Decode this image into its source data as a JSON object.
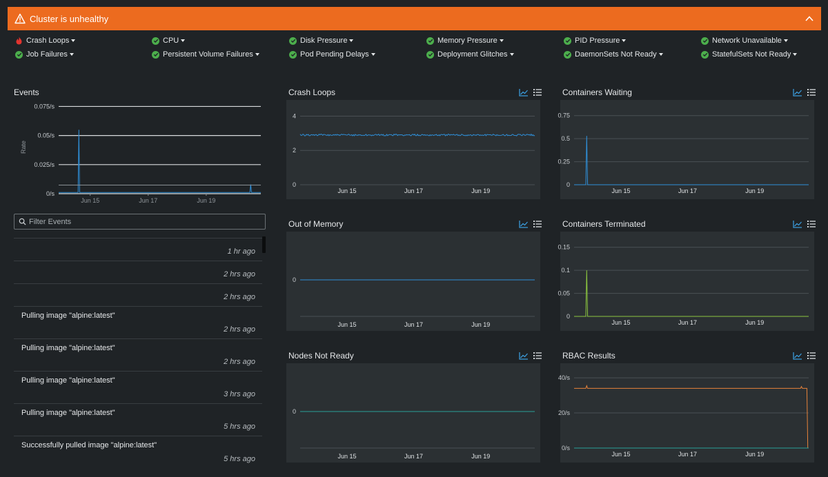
{
  "banner": {
    "title": "Cluster is unhealthy",
    "icon": "warning-icon",
    "color": "#ec6b1f"
  },
  "checks": [
    {
      "label": "Crash Loops",
      "status": "fail"
    },
    {
      "label": "CPU",
      "status": "ok"
    },
    {
      "label": "Disk Pressure",
      "status": "ok"
    },
    {
      "label": "Memory Pressure",
      "status": "ok"
    },
    {
      "label": "PID Pressure",
      "status": "ok"
    },
    {
      "label": "Network Unavailable",
      "status": "ok"
    },
    {
      "label": "Job Failures",
      "status": "ok"
    },
    {
      "label": "Persistent Volume Failures",
      "status": "ok"
    },
    {
      "label": "Pod Pending Delays",
      "status": "ok"
    },
    {
      "label": "Deployment Glitches",
      "status": "ok"
    },
    {
      "label": "DaemonSets Not Ready",
      "status": "ok"
    },
    {
      "label": "StatefulSets Not Ready",
      "status": "ok"
    }
  ],
  "events": {
    "title": "Events",
    "filter_placeholder": "Filter Events",
    "items": [
      {
        "message": "",
        "time": "1 hr ago"
      },
      {
        "message": "",
        "time": "2 hrs ago"
      },
      {
        "message": "",
        "time": "2 hrs ago"
      },
      {
        "message": "Pulling image \"alpine:latest\"",
        "time": "2 hrs ago"
      },
      {
        "message": "Pulling image \"alpine:latest\"",
        "time": "2 hrs ago"
      },
      {
        "message": "Pulling image \"alpine:latest\"",
        "time": "3 hrs ago"
      },
      {
        "message": "Pulling image \"alpine:latest\"",
        "time": "5 hrs ago"
      },
      {
        "message": "Successfully pulled image \"alpine:latest\"",
        "time": "5 hrs ago"
      }
    ]
  },
  "chart_data": [
    {
      "id": "events",
      "type": "line",
      "title": "Events",
      "ylabel": "Rate",
      "y_ticks": [
        "0/s",
        "0.025/s",
        "0.05/s",
        "0.075/s"
      ],
      "ylim": [
        0,
        0.08
      ],
      "x_ticks": [
        "Jun 15",
        "Jun 17",
        "Jun 19"
      ],
      "series": [
        {
          "color": "#2f8fd8",
          "baseline": 0.001,
          "spikes": [
            [
              0.1,
              0.055
            ],
            [
              0.95,
              0.008
            ]
          ]
        }
      ]
    },
    {
      "id": "crash-loops",
      "type": "line",
      "title": "Crash Loops",
      "y_ticks": [
        "0",
        "2",
        "4"
      ],
      "ylim": [
        0,
        4.3
      ],
      "x_ticks": [
        "Jun 15",
        "Jun 17",
        "Jun 19"
      ],
      "series": [
        {
          "color": "#2f8fd8",
          "baseline": 2.9,
          "noise": 0.05
        }
      ]
    },
    {
      "id": "containers-waiting",
      "type": "line",
      "title": "Containers Waiting",
      "y_ticks": [
        "0",
        "0.25",
        "0.5",
        "0.75"
      ],
      "ylim": [
        0,
        0.8
      ],
      "x_ticks": [
        "Jun 15",
        "Jun 17",
        "Jun 19"
      ],
      "series": [
        {
          "color": "#2f8fd8",
          "baseline": 0,
          "spikes": [
            [
              0.055,
              0.53
            ]
          ]
        }
      ]
    },
    {
      "id": "out-of-memory",
      "type": "line",
      "title": "Out of Memory",
      "y_ticks": [
        "0"
      ],
      "ylim": [
        -1,
        1
      ],
      "x_ticks": [
        "Jun 15",
        "Jun 17",
        "Jun 19"
      ],
      "series": [
        {
          "color": "#2f8fd8",
          "baseline": 0
        }
      ]
    },
    {
      "id": "containers-terminated",
      "type": "line",
      "title": "Containers Terminated",
      "y_ticks": [
        "0",
        "0.05",
        "0.1",
        "0.15"
      ],
      "ylim": [
        0,
        0.16
      ],
      "x_ticks": [
        "Jun 15",
        "Jun 17",
        "Jun 19"
      ],
      "series": [
        {
          "color": "#8cc63f",
          "baseline": 0,
          "spikes": [
            [
              0.055,
              0.1
            ]
          ]
        }
      ]
    },
    {
      "id": "nodes-not-ready",
      "type": "line",
      "title": "Nodes Not Ready",
      "y_ticks": [
        "0"
      ],
      "ylim": [
        -1,
        1
      ],
      "x_ticks": [
        "Jun 15",
        "Jun 17",
        "Jun 19"
      ],
      "series": [
        {
          "color": "#2aa198",
          "baseline": 0
        }
      ]
    },
    {
      "id": "rbac-results",
      "type": "line",
      "title": "RBAC Results",
      "y_ticks": [
        "0/s",
        "20/s",
        "40/s"
      ],
      "ylim": [
        0,
        42
      ],
      "x_ticks": [
        "Jun 15",
        "Jun 17",
        "Jun 19"
      ],
      "series": [
        {
          "color": "#e8833a",
          "baseline": 34,
          "spikes": [
            [
              0.055,
              35.5
            ],
            [
              0.97,
              35
            ]
          ],
          "drop_at": 0.995
        },
        {
          "color": "#2aa198",
          "baseline": 0
        }
      ]
    }
  ]
}
